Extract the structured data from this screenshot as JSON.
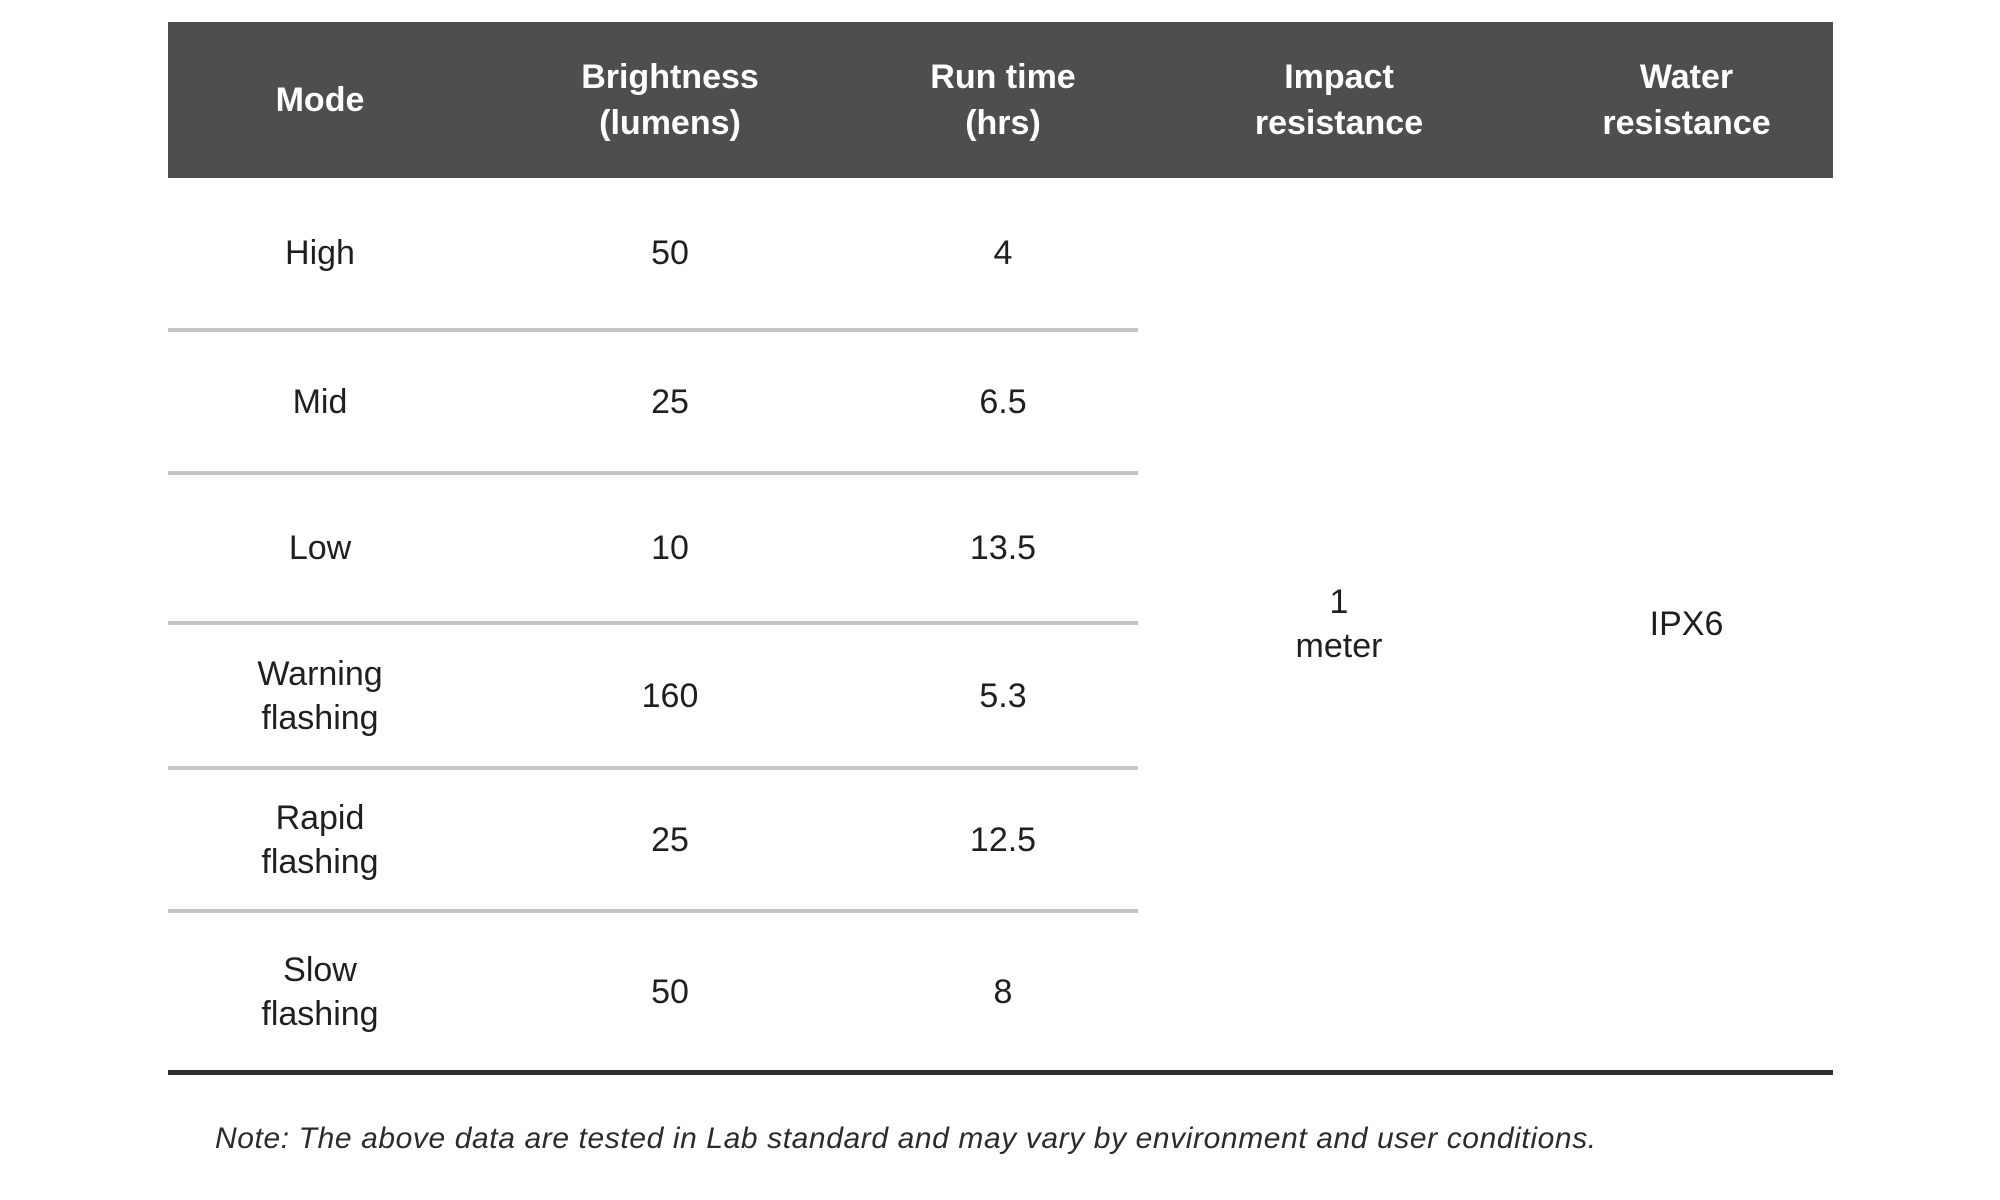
{
  "chart_data": {
    "type": "table",
    "title": "",
    "columns": [
      "Mode",
      "Brightness (lumens)",
      "Run time (hrs)",
      "Impact resistance",
      "Water resistance"
    ],
    "rows": [
      [
        "High",
        50,
        4,
        "1 meter",
        "IPX6"
      ],
      [
        "Mid",
        25,
        6.5,
        "1 meter",
        "IPX6"
      ],
      [
        "Low",
        10,
        13.5,
        "1 meter",
        "IPX6"
      ],
      [
        "Warning flashing",
        160,
        5.3,
        "1 meter",
        "IPX6"
      ],
      [
        "Rapid flashing",
        25,
        12.5,
        "1 meter",
        "IPX6"
      ],
      [
        "Slow flashing",
        50,
        8,
        "1 meter",
        "IPX6"
      ]
    ],
    "merged_cells": {
      "impact_resistance": "1 meter (spans all 6 rows)",
      "water_resistance": "IPX6 (spans all 6 rows)"
    },
    "note": "Note: The above data are tested in Lab standard and may vary by environment and user conditions."
  },
  "table": {
    "headers": [
      "Mode",
      "Brightness\n(lumens)",
      "Run time\n(hrs)",
      "Impact\nresistance",
      "Water\nresistance"
    ],
    "rows": [
      {
        "mode": "High",
        "brightness": "50",
        "run_time": "4"
      },
      {
        "mode": "Mid",
        "brightness": "25",
        "run_time": "6.5"
      },
      {
        "mode": "Low",
        "brightness": "10",
        "run_time": "13.5"
      },
      {
        "mode": "Warning\nflashing",
        "brightness": "160",
        "run_time": "5.3"
      },
      {
        "mode": "Rapid\nflashing",
        "brightness": "25",
        "run_time": "12.5"
      },
      {
        "mode": "Slow\nflashing",
        "brightness": "50",
        "run_time": "8"
      }
    ],
    "impact_resistance": "1\nmeter",
    "water_resistance": "IPX6"
  },
  "note": "Note: The above data are tested in Lab standard and may vary by environment and user conditions.",
  "colors": {
    "header_bg": "#4e4e4e",
    "header_text": "#ffffff",
    "body_text": "#1f1f1f",
    "row_divider": "#c5c5c5",
    "bottom_border": "#2e2e2e"
  }
}
